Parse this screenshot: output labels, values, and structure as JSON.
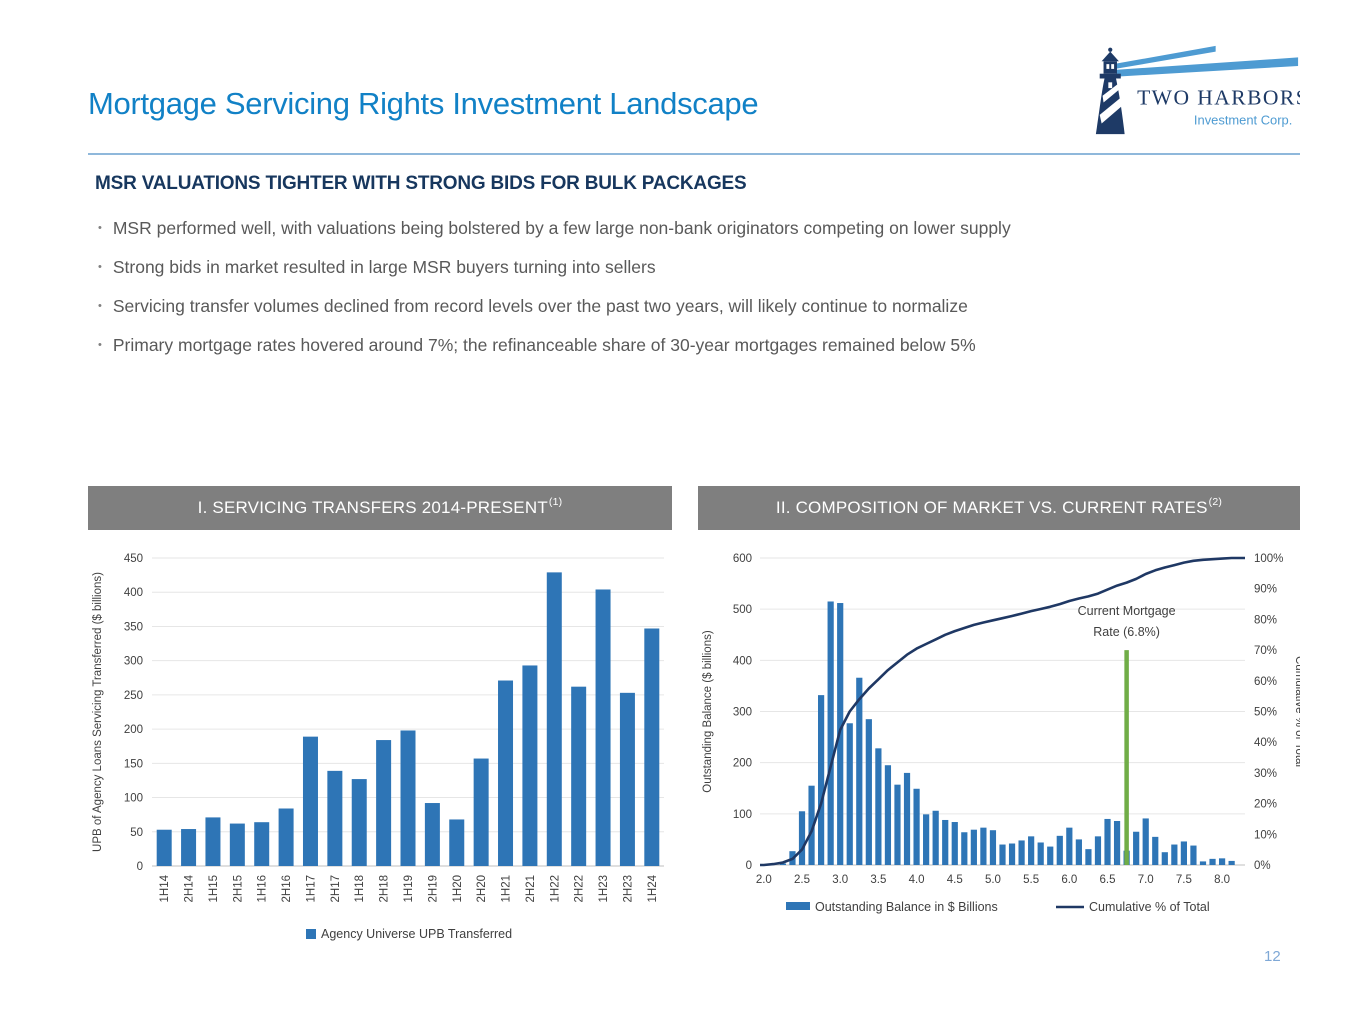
{
  "slide": {
    "title": "Mortgage Servicing Rights Investment Landscape",
    "heading": "MSR VALUATIONS TIGHTER WITH STRONG BIDS FOR BULK PACKAGES",
    "bullets": [
      "MSR performed well, with valuations being bolstered by a few large non-bank originators competing on lower supply",
      "Strong bids in market resulted in large MSR buyers turning into sellers",
      "Servicing transfer volumes declined from record levels over the past two years, will likely continue to normalize",
      "Primary mortgage rates hovered around 7%; the refinanceable share of 30-year mortgages remained below 5%"
    ],
    "logo": {
      "name": "TWO HARBORS",
      "subtitle": "Investment Corp."
    },
    "page_number": "12"
  },
  "colors": {
    "accent_blue": "#1181C6",
    "heading_navy": "#17375E",
    "body_gray": "#595959",
    "panel_header_gray": "#7F7F7F",
    "bar_blue": "#2E75B6",
    "line_navy": "#1F3864",
    "marker_green": "#70AD47",
    "divider_blue": "#8FB8DB",
    "page_number_blue": "#7FA8D6"
  },
  "chart_data": [
    {
      "type": "bar",
      "title": "I. SERVICING TRANSFERS 2014-PRESENT",
      "footnote": "(1)",
      "ylabel": "UPB of Agency Loans Servicing Transferred ($ billions)",
      "ylim": [
        0,
        450
      ],
      "ytick_step": 50,
      "grid": true,
      "bar_color": "#2E75B6",
      "categories": [
        "1H14",
        "2H14",
        "1H15",
        "2H15",
        "1H16",
        "2H16",
        "1H17",
        "2H17",
        "1H18",
        "2H18",
        "1H19",
        "2H19",
        "1H20",
        "2H20",
        "1H21",
        "2H21",
        "1H22",
        "2H22",
        "1H23",
        "2H23",
        "1H24"
      ],
      "values": [
        53,
        54,
        71,
        62,
        64,
        84,
        189,
        139,
        127,
        184,
        198,
        92,
        68,
        157,
        271,
        293,
        429,
        262,
        404,
        253,
        347
      ],
      "legend": [
        "Agency Universe UPB Transferred"
      ]
    },
    {
      "type": "bar+line",
      "title": "II. COMPOSITION OF MARKET VS. CURRENT RATES",
      "footnote": "(2)",
      "ylabel_left": "Outstanding Balance ($ billions)",
      "ylabel_right": "Cumulative % of Total",
      "ylim_left": [
        0,
        600
      ],
      "ylim_right_pct": [
        0,
        100
      ],
      "xlim": [
        1.95,
        8.3
      ],
      "xticks": [
        "2.0",
        "2.5",
        "3.0",
        "3.5",
        "4.0",
        "4.5",
        "5.0",
        "5.5",
        "6.0",
        "6.5",
        "7.0",
        "7.5",
        "8.0"
      ],
      "x": [
        2.0,
        2.125,
        2.25,
        2.375,
        2.5,
        2.625,
        2.75,
        2.875,
        3.0,
        3.125,
        3.25,
        3.375,
        3.5,
        3.625,
        3.75,
        3.875,
        4.0,
        4.125,
        4.25,
        4.375,
        4.5,
        4.625,
        4.75,
        4.875,
        5.0,
        5.125,
        5.25,
        5.375,
        5.5,
        5.625,
        5.75,
        5.875,
        6.0,
        6.125,
        6.25,
        6.375,
        6.5,
        6.625,
        6.75,
        6.875,
        7.0,
        7.125,
        7.25,
        7.375,
        7.5,
        7.625,
        7.75,
        7.875,
        8.0,
        8.125
      ],
      "series": [
        {
          "name": "Outstanding Balance in $ Billions",
          "type": "bar",
          "axis": "left",
          "color": "#2E75B6",
          "values": [
            0,
            0,
            3,
            27,
            105,
            155,
            332,
            515,
            512,
            277,
            366,
            285,
            228,
            195,
            157,
            180,
            149,
            99,
            106,
            88,
            84,
            64,
            69,
            73,
            68,
            40,
            42,
            48,
            56,
            44,
            36,
            57,
            73,
            50,
            31,
            56,
            90,
            86,
            28,
            65,
            91,
            55,
            25,
            40,
            46,
            38,
            7,
            12,
            13,
            8
          ]
        },
        {
          "name": "Cumulative % of Total",
          "type": "line",
          "axis": "right",
          "color": "#1F3864",
          "values": [
            0,
            0.3,
            0.8,
            2,
            5,
            11,
            20,
            32,
            44,
            50,
            54,
            57.5,
            60.5,
            63.5,
            66,
            68.5,
            70.5,
            72,
            73.5,
            75,
            76.2,
            77.2,
            78.2,
            79,
            79.7,
            80.4,
            81.1,
            81.9,
            82.7,
            83.4,
            84.1,
            85,
            86,
            86.8,
            87.5,
            88.4,
            89.7,
            91,
            92,
            93.2,
            94.8,
            96,
            96.9,
            97.7,
            98.5,
            99.1,
            99.4,
            99.6,
            99.8,
            100
          ]
        }
      ],
      "annotation": {
        "label_line1": "Current Mortgage",
        "label_line2": "Rate (6.8%)",
        "x": 6.75,
        "top_value_left_axis": 420,
        "color": "#70AD47"
      }
    }
  ]
}
